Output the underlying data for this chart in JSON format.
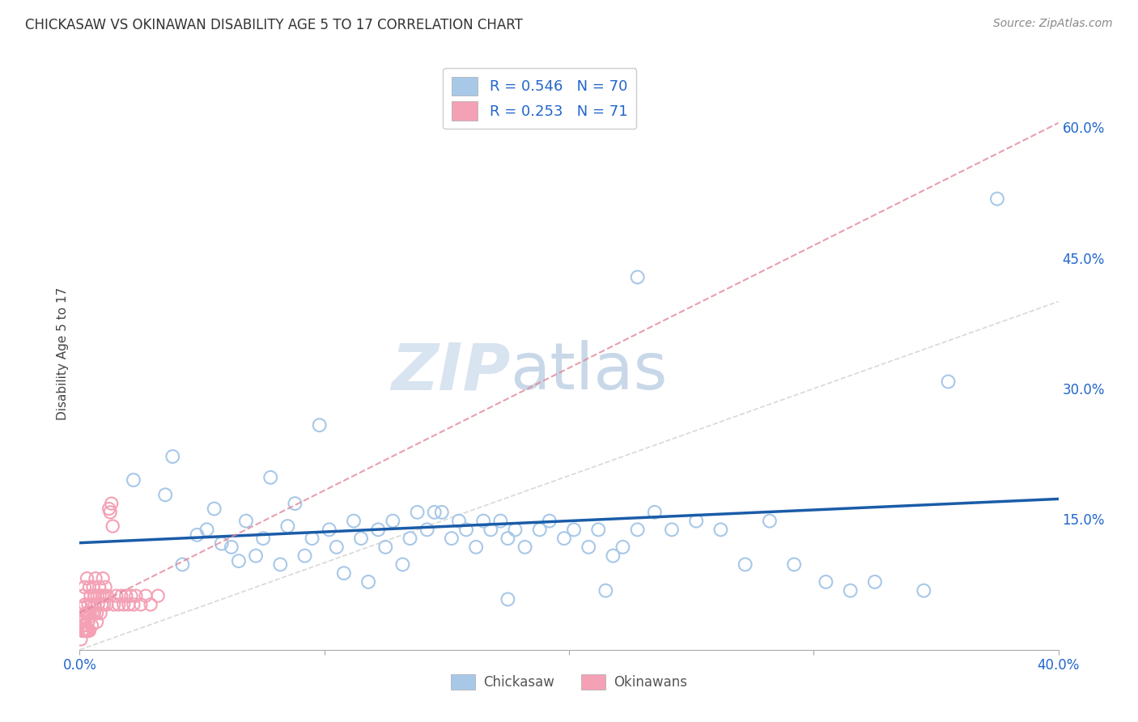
{
  "title": "CHICKASAW VS OKINAWAN DISABILITY AGE 5 TO 17 CORRELATION CHART",
  "source": "Source: ZipAtlas.com",
  "ylabel": "Disability Age 5 to 17",
  "xlim": [
    0.0,
    0.4
  ],
  "ylim": [
    0.0,
    0.68
  ],
  "chickasaw_R": 0.546,
  "chickasaw_N": 70,
  "okinawan_R": 0.253,
  "okinawan_N": 71,
  "chickasaw_color": "#A8C8E8",
  "okinawan_color": "#F4A0B5",
  "chickasaw_trend_color": "#1A5CA8",
  "okinawan_trend_color": "#E08898",
  "ref_line_color": "#C8C8C8",
  "watermark_zip_color": "#D8E4F0",
  "watermark_atlas_color": "#C8D8E8",
  "background_color": "#FFFFFF",
  "grid_color": "#E0E0E0",
  "legend_color": "#2266CC",
  "axis_label_color": "#2266CC",
  "title_color": "#333333",
  "source_color": "#888888",
  "chickasaw_x": [
    0.022,
    0.035,
    0.038,
    0.042,
    0.048,
    0.052,
    0.055,
    0.058,
    0.062,
    0.065,
    0.068,
    0.072,
    0.075,
    0.078,
    0.082,
    0.085,
    0.088,
    0.092,
    0.095,
    0.098,
    0.102,
    0.105,
    0.108,
    0.112,
    0.115,
    0.118,
    0.122,
    0.125,
    0.128,
    0.132,
    0.135,
    0.138,
    0.142,
    0.145,
    0.148,
    0.152,
    0.155,
    0.158,
    0.162,
    0.165,
    0.168,
    0.172,
    0.175,
    0.178,
    0.182,
    0.188,
    0.192,
    0.198,
    0.202,
    0.208,
    0.212,
    0.218,
    0.222,
    0.228,
    0.235,
    0.242,
    0.252,
    0.262,
    0.272,
    0.282,
    0.292,
    0.305,
    0.315,
    0.325,
    0.345,
    0.355,
    0.375,
    0.215,
    0.175,
    0.228
  ],
  "chickasaw_y": [
    0.195,
    0.178,
    0.222,
    0.098,
    0.132,
    0.138,
    0.162,
    0.122,
    0.118,
    0.102,
    0.148,
    0.108,
    0.128,
    0.198,
    0.098,
    0.142,
    0.168,
    0.108,
    0.128,
    0.258,
    0.138,
    0.118,
    0.088,
    0.148,
    0.128,
    0.078,
    0.138,
    0.118,
    0.148,
    0.098,
    0.128,
    0.158,
    0.138,
    0.158,
    0.158,
    0.128,
    0.148,
    0.138,
    0.118,
    0.148,
    0.138,
    0.148,
    0.128,
    0.138,
    0.118,
    0.138,
    0.148,
    0.128,
    0.138,
    0.118,
    0.138,
    0.108,
    0.118,
    0.138,
    0.158,
    0.138,
    0.148,
    0.138,
    0.098,
    0.148,
    0.098,
    0.078,
    0.068,
    0.078,
    0.068,
    0.308,
    0.518,
    0.068,
    0.058,
    0.428
  ],
  "okinawan_x": [
    0.001,
    0.0012,
    0.0015,
    0.002,
    0.0022,
    0.0025,
    0.003,
    0.0032,
    0.0035,
    0.004,
    0.0042,
    0.0045,
    0.005,
    0.0052,
    0.0055,
    0.006,
    0.0062,
    0.0065,
    0.007,
    0.0072,
    0.0075,
    0.008,
    0.0082,
    0.0085,
    0.009,
    0.0092,
    0.0095,
    0.01,
    0.0102,
    0.0105,
    0.011,
    0.0112,
    0.012,
    0.0125,
    0.013,
    0.0135,
    0.014,
    0.015,
    0.016,
    0.017,
    0.018,
    0.019,
    0.02,
    0.021,
    0.022,
    0.023,
    0.025,
    0.027,
    0.029,
    0.032,
    0.001,
    0.0015,
    0.002,
    0.0025,
    0.003,
    0.0035,
    0.004,
    0.005,
    0.006,
    0.007,
    0.001,
    0.0012,
    0.0015,
    0.002,
    0.0022,
    0.0025,
    0.003,
    0.0032,
    0.0035,
    0.004,
    0.0005
  ],
  "okinawan_y": [
    0.048,
    0.062,
    0.038,
    0.072,
    0.052,
    0.042,
    0.082,
    0.042,
    0.052,
    0.072,
    0.042,
    0.062,
    0.052,
    0.042,
    0.072,
    0.062,
    0.052,
    0.082,
    0.042,
    0.062,
    0.052,
    0.072,
    0.062,
    0.042,
    0.052,
    0.062,
    0.082,
    0.052,
    0.062,
    0.072,
    0.052,
    0.062,
    0.162,
    0.158,
    0.168,
    0.142,
    0.052,
    0.062,
    0.052,
    0.062,
    0.052,
    0.062,
    0.052,
    0.062,
    0.052,
    0.062,
    0.052,
    0.062,
    0.052,
    0.062,
    0.028,
    0.032,
    0.038,
    0.028,
    0.042,
    0.032,
    0.038,
    0.028,
    0.042,
    0.032,
    0.022,
    0.022,
    0.022,
    0.022,
    0.022,
    0.022,
    0.022,
    0.022,
    0.022,
    0.022,
    0.012
  ]
}
